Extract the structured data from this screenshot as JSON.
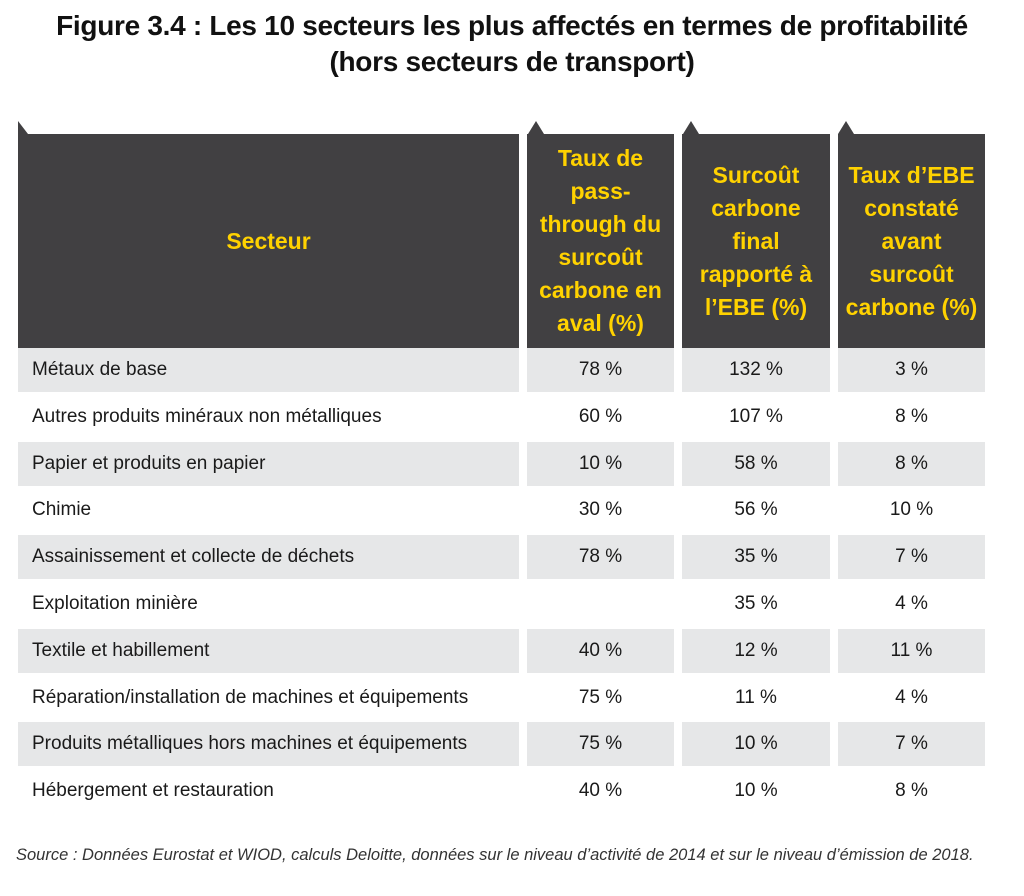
{
  "figure": {
    "title_line1": "Figure 3.4 : Les 10 secteurs les plus affectés en termes de profitabilité",
    "title_line2": "(hors secteurs de transport)"
  },
  "table": {
    "headers": {
      "sector": "Secteur",
      "pass_through": "Taux de pass-through du surcoût carbone en aval (%)",
      "surcout": "Surcoût carbone final rapporté à l’EBE (%)",
      "ebe": "Taux d’EBE constaté avant surcoût carbone (%)"
    },
    "rows": [
      {
        "sector": "Métaux de base",
        "pass_through": "78 %",
        "surcout": "132 %",
        "ebe": "3 %"
      },
      {
        "sector": "Autres produits minéraux non métalliques",
        "pass_through": "60 %",
        "surcout": "107 %",
        "ebe": "8 %"
      },
      {
        "sector": "Papier et produits en papier",
        "pass_through": "10 %",
        "surcout": "58 %",
        "ebe": "8 %"
      },
      {
        "sector": "Chimie",
        "pass_through": "30 %",
        "surcout": "56 %",
        "ebe": "10 %"
      },
      {
        "sector": "Assainissement et collecte de déchets",
        "pass_through": "78 %",
        "surcout": "35 %",
        "ebe": "7 %"
      },
      {
        "sector": "Exploitation minière",
        "pass_through": "",
        "surcout": "35 %",
        "ebe": "4 %"
      },
      {
        "sector": "Textile et habillement",
        "pass_through": "40 %",
        "surcout": "12 %",
        "ebe": "11 %"
      },
      {
        "sector": "Réparation/installation de machines et équipements",
        "pass_through": "75 %",
        "surcout": "11 %",
        "ebe": "4 %"
      },
      {
        "sector": "Produits métalliques hors machines et équipements",
        "pass_through": "75 %",
        "surcout": "10 %",
        "ebe": "7 %"
      },
      {
        "sector": "Hébergement et restauration",
        "pass_through": "40 %",
        "surcout": "10 %",
        "ebe": "8 %"
      }
    ]
  },
  "source": "Source : Données Eurostat et WIOD, calculs Deloitte, données sur le niveau d’activité de 2014 et sur le niveau d’émission de 2018.",
  "colors": {
    "header_bg": "#414042",
    "header_text": "#ffd200",
    "row_shade": "#e6e7e8"
  }
}
